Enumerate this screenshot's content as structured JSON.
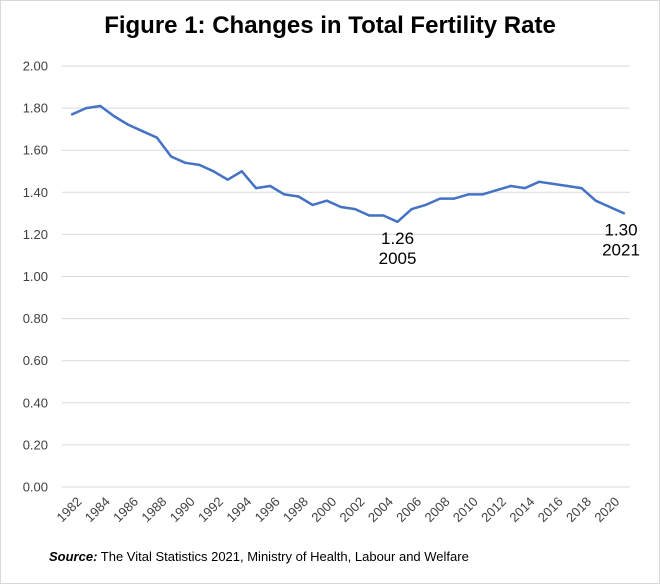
{
  "title": "Figure 1: Changes in Total Fertility Rate",
  "source": {
    "label": "Source:",
    "text": " The Vital Statistics 2021, Ministry of Health, Labour and Welfare"
  },
  "colors": {
    "line": "#4472c4",
    "grid": "#d9d9d9"
  },
  "chart_data": {
    "type": "line",
    "title": "Figure 1: Changes in Total Fertility Rate",
    "xlabel": "",
    "ylabel": "",
    "ylim": [
      0,
      2.0
    ],
    "xlim": [
      1982,
      2021
    ],
    "grid": true,
    "y_ticks": [
      "0.00",
      "0.20",
      "0.40",
      "0.60",
      "0.80",
      "1.00",
      "1.20",
      "1.40",
      "1.60",
      "1.80",
      "2.00"
    ],
    "x_ticks": [
      "1982",
      "1984",
      "1986",
      "1988",
      "1990",
      "1992",
      "1994",
      "1996",
      "1998",
      "2000",
      "2002",
      "2004",
      "2006",
      "2008",
      "2010",
      "2012",
      "2014",
      "2016",
      "2018",
      "2020"
    ],
    "x": [
      1982,
      1983,
      1984,
      1985,
      1986,
      1987,
      1988,
      1989,
      1990,
      1991,
      1992,
      1993,
      1994,
      1995,
      1996,
      1997,
      1998,
      1999,
      2000,
      2001,
      2002,
      2003,
      2004,
      2005,
      2006,
      2007,
      2008,
      2009,
      2010,
      2011,
      2012,
      2013,
      2014,
      2015,
      2016,
      2017,
      2018,
      2019,
      2020,
      2021
    ],
    "values": [
      1.77,
      1.8,
      1.81,
      1.76,
      1.72,
      1.69,
      1.66,
      1.57,
      1.54,
      1.53,
      1.5,
      1.46,
      1.5,
      1.42,
      1.43,
      1.39,
      1.38,
      1.34,
      1.36,
      1.33,
      1.32,
      1.29,
      1.29,
      1.26,
      1.32,
      1.34,
      1.37,
      1.37,
      1.39,
      1.39,
      1.41,
      1.43,
      1.42,
      1.45,
      1.44,
      1.43,
      1.42,
      1.36,
      1.33,
      1.3
    ],
    "annotations": [
      {
        "x": 2005,
        "value_text": "1.26",
        "year_text": "2005",
        "pos": "below"
      },
      {
        "x": 2021,
        "value_text": "1.30",
        "year_text": "2021",
        "pos": "below-left"
      }
    ]
  }
}
